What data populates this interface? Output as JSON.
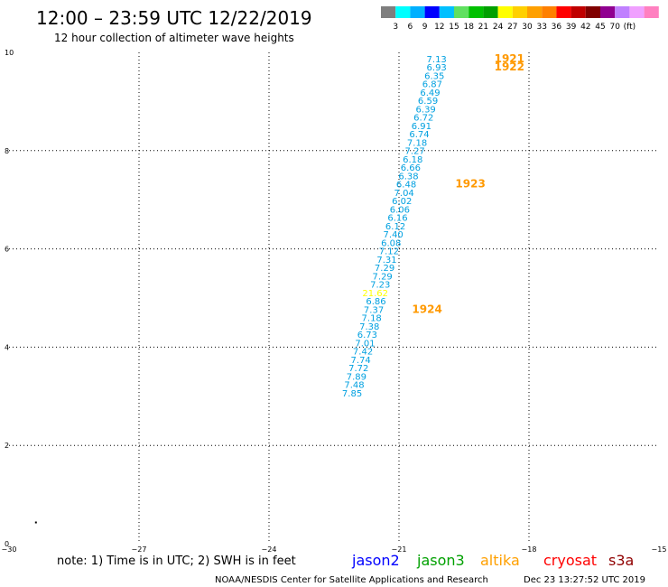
{
  "header": {
    "title": "12:00 – 23:59 UTC 12/22/2019",
    "subtitle": "12 hour collection of altimeter wave heights"
  },
  "colorbar": {
    "colors": [
      "#7f7f7f",
      "#00ffff",
      "#00b0ff",
      "#0000ff",
      "#00c0ff",
      "#60e060",
      "#00c000",
      "#00a000",
      "#ffff00",
      "#ffd000",
      "#ffa000",
      "#ff8000",
      "#ff0000",
      "#c00000",
      "#800000",
      "#900090",
      "#c080ff",
      "#f0a0ff",
      "#ff80c0"
    ],
    "labels": [
      "3",
      "6",
      "9",
      "12",
      "15",
      "18",
      "21",
      "24",
      "27",
      "30",
      "33",
      "36",
      "39",
      "42",
      "45",
      "70",
      "(ft)"
    ]
  },
  "chart_data": {
    "type": "scatter",
    "xlim": [
      -30,
      -15
    ],
    "ylim": [
      0,
      10
    ],
    "xticks": [
      -30,
      -27,
      -24,
      -21,
      -18,
      -15
    ],
    "yticks": [
      0,
      2,
      4,
      6,
      8,
      10
    ],
    "grid": true,
    "points": [
      {
        "x": -19.9,
        "y": 9.8,
        "label": "7.13"
      },
      {
        "x": -19.9,
        "y": 9.63,
        "label": "6.93"
      },
      {
        "x": -19.95,
        "y": 9.46,
        "label": "6.35"
      },
      {
        "x": -20.0,
        "y": 9.29,
        "label": "6.87"
      },
      {
        "x": -20.05,
        "y": 9.12,
        "label": "6.49"
      },
      {
        "x": -20.1,
        "y": 8.95,
        "label": "6.59"
      },
      {
        "x": -20.15,
        "y": 8.78,
        "label": "6.39"
      },
      {
        "x": -20.2,
        "y": 8.61,
        "label": "6.72"
      },
      {
        "x": -20.25,
        "y": 8.44,
        "label": "6.91"
      },
      {
        "x": -20.3,
        "y": 8.27,
        "label": "6.74"
      },
      {
        "x": -20.35,
        "y": 8.1,
        "label": "7.18"
      },
      {
        "x": -20.4,
        "y": 7.93,
        "label": "7.27"
      },
      {
        "x": -20.45,
        "y": 7.76,
        "label": "6.18"
      },
      {
        "x": -20.5,
        "y": 7.59,
        "label": "6.66"
      },
      {
        "x": -20.55,
        "y": 7.42,
        "label": "6.38"
      },
      {
        "x": -20.6,
        "y": 7.25,
        "label": "6.48"
      },
      {
        "x": -20.65,
        "y": 7.08,
        "label": "7.04"
      },
      {
        "x": -20.7,
        "y": 6.91,
        "label": "6.02"
      },
      {
        "x": -20.75,
        "y": 6.74,
        "label": "6.06"
      },
      {
        "x": -20.8,
        "y": 6.57,
        "label": "6.16"
      },
      {
        "x": -20.85,
        "y": 6.4,
        "label": "6.12"
      },
      {
        "x": -20.9,
        "y": 6.23,
        "label": "7.40"
      },
      {
        "x": -20.95,
        "y": 6.06,
        "label": "6.08"
      },
      {
        "x": -21.0,
        "y": 5.89,
        "label": "7.12"
      },
      {
        "x": -21.05,
        "y": 5.72,
        "label": "7.31"
      },
      {
        "x": -21.1,
        "y": 5.55,
        "label": "7.29"
      },
      {
        "x": -21.15,
        "y": 5.38,
        "label": "7.29"
      },
      {
        "x": -21.2,
        "y": 5.21,
        "label": "7.23"
      },
      {
        "x": -21.25,
        "y": 5.04,
        "label": "21.62"
      },
      {
        "x": -21.3,
        "y": 4.87,
        "label": "6.86"
      },
      {
        "x": -21.35,
        "y": 4.7,
        "label": "7.37"
      },
      {
        "x": -21.4,
        "y": 4.53,
        "label": "7.18"
      },
      {
        "x": -21.45,
        "y": 4.36,
        "label": "7.38"
      },
      {
        "x": -21.5,
        "y": 4.19,
        "label": "6.73"
      },
      {
        "x": -21.55,
        "y": 4.02,
        "label": "7.01"
      },
      {
        "x": -21.6,
        "y": 3.85,
        "label": "7.42"
      },
      {
        "x": -21.65,
        "y": 3.68,
        "label": "7.74"
      },
      {
        "x": -21.7,
        "y": 3.51,
        "label": "7.72"
      },
      {
        "x": -21.75,
        "y": 3.34,
        "label": "7.89"
      },
      {
        "x": -21.8,
        "y": 3.17,
        "label": "7.48"
      },
      {
        "x": -21.85,
        "y": 3.0,
        "label": "7.85"
      }
    ],
    "time_labels": [
      {
        "x": -18.8,
        "y": 9.8,
        "label": "1921"
      },
      {
        "x": -18.8,
        "y": 9.63,
        "label": "1922"
      },
      {
        "x": -19.7,
        "y": 7.25,
        "label": "1923"
      },
      {
        "x": -20.7,
        "y": 4.7,
        "label": "1924"
      }
    ],
    "stray_mark": {
      "x": -29.4,
      "y": 0.45
    }
  },
  "footer": {
    "note": "note: 1) Time is in UTC; 2) SWH is in feet",
    "satellites": [
      {
        "name": "jason2",
        "color": "#0000ff"
      },
      {
        "name": "jason3",
        "color": "#00a000"
      },
      {
        "name": "altika",
        "color": "#ffa000"
      },
      {
        "name": "cryosat",
        "color": "#ff0000"
      },
      {
        "name": "s3a",
        "color": "#900000"
      }
    ],
    "credit": "NOAA/NESDIS Center for Satellite Applications and Research",
    "timestamp": "Dec 23 13:27:52 UTC 2019"
  },
  "colors": {
    "value_text": "#00a0e0",
    "highlight_value": "#ffff00",
    "time_label": "#ff9900"
  }
}
